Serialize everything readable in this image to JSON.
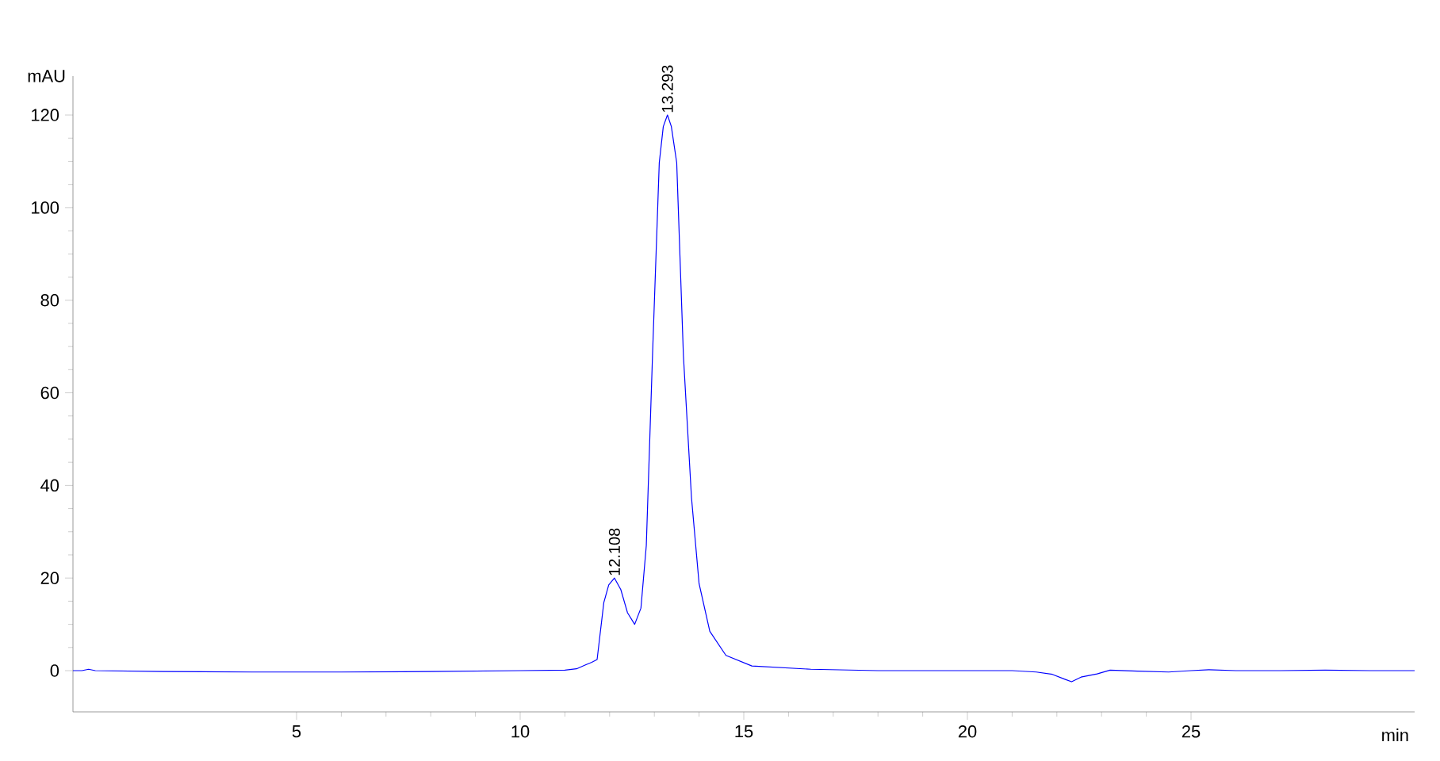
{
  "chart_data": {
    "type": "line",
    "xlabel": "min",
    "ylabel": "mAU",
    "xlim": [
      0,
      30
    ],
    "ylim": [
      -8.9,
      128.4
    ],
    "xticks": [
      5,
      10,
      15,
      20,
      25
    ],
    "yticks": [
      0,
      20,
      40,
      60,
      80,
      100,
      120
    ],
    "grid": false,
    "marker": "none",
    "line_style": "solid",
    "series": [
      {
        "color": "#0000ff",
        "x": [
          0,
          0.2,
          0.35,
          0.5,
          2,
          4,
          6,
          8,
          10,
          11.0,
          11.26,
          11.45,
          11.6,
          11.72,
          11.87,
          11.98,
          12.108,
          12.25,
          12.4,
          12.56,
          12.7,
          12.82,
          12.96,
          13.11,
          13.2,
          13.293,
          13.38,
          13.5,
          13.65,
          13.83,
          14.0,
          14.24,
          14.6,
          15.18,
          16.5,
          18,
          20,
          21.0,
          21.54,
          21.9,
          22.19,
          22.33,
          22.54,
          22.9,
          23.19,
          23.8,
          24.5,
          25.0,
          25.4,
          26,
          27,
          28,
          29,
          30
        ],
        "values": [
          0,
          0,
          0.3,
          0,
          -0.2,
          -0.3,
          -0.3,
          -0.2,
          0,
          0.1,
          0.4,
          1.2,
          1.8,
          2.4,
          14.7,
          18.5,
          20.0,
          17.5,
          12.5,
          10.0,
          13.5,
          27,
          68.4,
          109.7,
          117.5,
          120.0,
          117.5,
          109.7,
          68,
          37.4,
          18.8,
          8.5,
          3.3,
          1.0,
          0.3,
          0,
          0,
          0,
          -0.3,
          -0.8,
          -1.9,
          -2.4,
          -1.4,
          -0.7,
          0.1,
          -0.1,
          -0.3,
          0,
          0.2,
          0,
          0,
          0.1,
          0,
          0
        ]
      }
    ],
    "annotations": [
      {
        "text": "12.108",
        "x": 12.108,
        "y": 20.0
      },
      {
        "text": "13.293",
        "x": 13.293,
        "y": 120.0
      }
    ]
  }
}
